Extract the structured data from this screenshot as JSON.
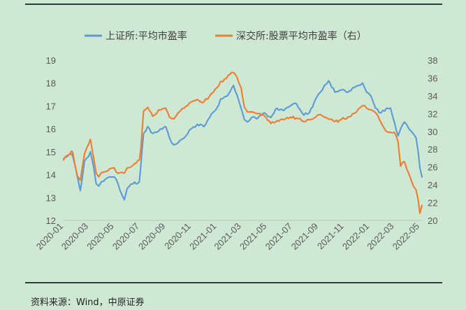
{
  "source": {
    "text": "资料来源：Wind，中原证券"
  },
  "colors": {
    "bg": "#cfe8d4",
    "sh": "#5b9bd5",
    "sz": "#ed7d31",
    "axis": "#595959",
    "rule": "#000000"
  },
  "chart_data": {
    "type": "line",
    "title": "",
    "legend_position": "top",
    "grid": false,
    "x_ticks": [
      "2020-01",
      "2020-03",
      "2020-05",
      "2020-07",
      "2020-09",
      "2020-11",
      "2021-01",
      "2021-03",
      "2021-05",
      "2021-07",
      "2021-09",
      "2021-11",
      "2022-01",
      "2022-03",
      "2022-05"
    ],
    "x_range": [
      "2020-01-01",
      "2022-05-06"
    ],
    "y_left": {
      "ticks": [
        "12",
        "13",
        "14",
        "15",
        "16",
        "17",
        "18",
        "19"
      ],
      "range": [
        12,
        19
      ]
    },
    "y_right": {
      "ticks": [
        "20",
        "22",
        "24",
        "26",
        "28",
        "30",
        "32",
        "34",
        "36",
        "38"
      ],
      "range": [
        20,
        38
      ]
    },
    "series": [
      {
        "name": "上证所:平均市盈率",
        "axis": "left",
        "color": "#5b9bd5",
        "x": [
          "2020-01-01",
          "2020-01-10",
          "2020-01-20",
          "2020-01-23",
          "2020-02-03",
          "2020-02-10",
          "2020-02-20",
          "2020-03-01",
          "2020-03-05",
          "2020-03-12",
          "2020-03-19",
          "2020-03-25",
          "2020-04-01",
          "2020-04-10",
          "2020-04-20",
          "2020-05-01",
          "2020-05-10",
          "2020-05-20",
          "2020-05-25",
          "2020-06-01",
          "2020-06-15",
          "2020-06-30",
          "2020-07-03",
          "2020-07-07",
          "2020-07-10",
          "2020-07-20",
          "2020-08-01",
          "2020-08-15",
          "2020-09-01",
          "2020-09-10",
          "2020-09-20",
          "2020-10-01",
          "2020-10-15",
          "2020-11-01",
          "2020-11-15",
          "2020-12-01",
          "2020-12-15",
          "2021-01-01",
          "2021-01-10",
          "2021-01-20",
          "2021-02-01",
          "2021-02-10",
          "2021-02-18",
          "2021-02-28",
          "2021-03-08",
          "2021-03-15",
          "2021-03-25",
          "2021-04-10",
          "2021-04-25",
          "2021-05-10",
          "2021-05-25",
          "2021-06-10",
          "2021-06-25",
          "2021-07-10",
          "2021-07-28",
          "2021-08-10",
          "2021-08-25",
          "2021-09-05",
          "2021-09-15",
          "2021-09-25",
          "2021-10-10",
          "2021-10-25",
          "2021-11-10",
          "2021-11-25",
          "2021-12-05",
          "2021-12-15",
          "2021-12-25",
          "2022-01-05",
          "2022-01-15",
          "2022-01-28",
          "2022-02-10",
          "2022-02-20",
          "2022-03-01",
          "2022-03-10",
          "2022-03-16",
          "2022-03-25",
          "2022-04-05",
          "2022-04-15",
          "2022-04-22",
          "2022-04-27",
          "2022-05-01",
          "2022-05-06"
        ],
        "y": [
          14.7,
          14.8,
          14.9,
          14.8,
          13.9,
          13.3,
          14.6,
          14.8,
          15.0,
          14.4,
          13.6,
          13.5,
          13.7,
          13.8,
          13.9,
          13.9,
          13.6,
          13.1,
          12.9,
          13.4,
          13.6,
          13.7,
          14.3,
          15.2,
          15.8,
          16.1,
          15.8,
          15.9,
          16.1,
          15.6,
          15.3,
          15.4,
          15.6,
          16.0,
          16.2,
          16.1,
          16.5,
          16.9,
          17.3,
          17.4,
          17.6,
          17.9,
          17.5,
          16.9,
          16.4,
          16.3,
          16.5,
          16.5,
          16.7,
          16.5,
          16.9,
          16.8,
          17.0,
          17.1,
          16.6,
          16.7,
          17.3,
          17.6,
          17.9,
          18.1,
          17.6,
          17.7,
          17.6,
          17.8,
          17.9,
          18.0,
          17.6,
          17.4,
          16.9,
          16.7,
          16.9,
          16.9,
          16.3,
          15.7,
          16.0,
          16.3,
          16.0,
          15.8,
          15.6,
          15.0,
          14.3,
          13.9
        ]
      },
      {
        "name": "深交所:股票平均市盈率（右）",
        "axis": "right",
        "color": "#ed7d31",
        "x": [
          "2020-01-01",
          "2020-01-10",
          "2020-01-20",
          "2020-01-23",
          "2020-02-03",
          "2020-02-10",
          "2020-02-20",
          "2020-03-01",
          "2020-03-05",
          "2020-03-12",
          "2020-03-19",
          "2020-03-25",
          "2020-04-01",
          "2020-04-10",
          "2020-04-20",
          "2020-05-01",
          "2020-05-10",
          "2020-05-20",
          "2020-05-25",
          "2020-06-01",
          "2020-06-15",
          "2020-06-30",
          "2020-07-03",
          "2020-07-07",
          "2020-07-10",
          "2020-07-20",
          "2020-08-01",
          "2020-08-15",
          "2020-09-01",
          "2020-09-10",
          "2020-09-20",
          "2020-10-01",
          "2020-10-15",
          "2020-11-01",
          "2020-11-15",
          "2020-12-01",
          "2020-12-15",
          "2021-01-01",
          "2021-01-10",
          "2021-01-20",
          "2021-02-01",
          "2021-02-10",
          "2021-02-18",
          "2021-02-28",
          "2021-03-08",
          "2021-03-15",
          "2021-03-25",
          "2021-04-10",
          "2021-04-25",
          "2021-05-10",
          "2021-05-25",
          "2021-06-10",
          "2021-06-25",
          "2021-07-10",
          "2021-07-28",
          "2021-08-10",
          "2021-08-25",
          "2021-09-05",
          "2021-09-15",
          "2021-09-25",
          "2021-10-10",
          "2021-10-25",
          "2021-11-10",
          "2021-11-25",
          "2021-12-05",
          "2021-12-15",
          "2021-12-25",
          "2022-01-05",
          "2022-01-15",
          "2022-01-28",
          "2022-02-10",
          "2022-02-20",
          "2022-03-01",
          "2022-03-10",
          "2022-03-16",
          "2022-03-25",
          "2022-04-05",
          "2022-04-15",
          "2022-04-22",
          "2022-04-27",
          "2022-05-01",
          "2022-05-06"
        ],
        "y": [
          26.8,
          27.3,
          27.8,
          27.6,
          25.0,
          24.5,
          27.5,
          28.6,
          29.1,
          27.2,
          25.3,
          24.9,
          25.4,
          25.5,
          25.8,
          25.9,
          25.3,
          25.4,
          25.3,
          25.9,
          26.2,
          26.8,
          27.8,
          30.4,
          32.3,
          32.7,
          31.7,
          32.4,
          32.6,
          31.6,
          31.4,
          32.1,
          32.6,
          33.3,
          33.6,
          33.3,
          34.0,
          34.9,
          35.6,
          35.9,
          36.4,
          36.6,
          36.1,
          34.9,
          32.7,
          32.2,
          32.2,
          32.0,
          31.7,
          30.9,
          31.2,
          31.3,
          31.6,
          31.5,
          31.1,
          31.3,
          31.6,
          31.9,
          31.6,
          31.4,
          31.1,
          31.3,
          31.6,
          32.0,
          32.5,
          32.9,
          32.6,
          32.4,
          32.1,
          31.0,
          30.0,
          29.9,
          29.9,
          28.8,
          26.1,
          26.6,
          25.2,
          23.9,
          23.4,
          22.3,
          20.8,
          21.7
        ]
      }
    ]
  }
}
